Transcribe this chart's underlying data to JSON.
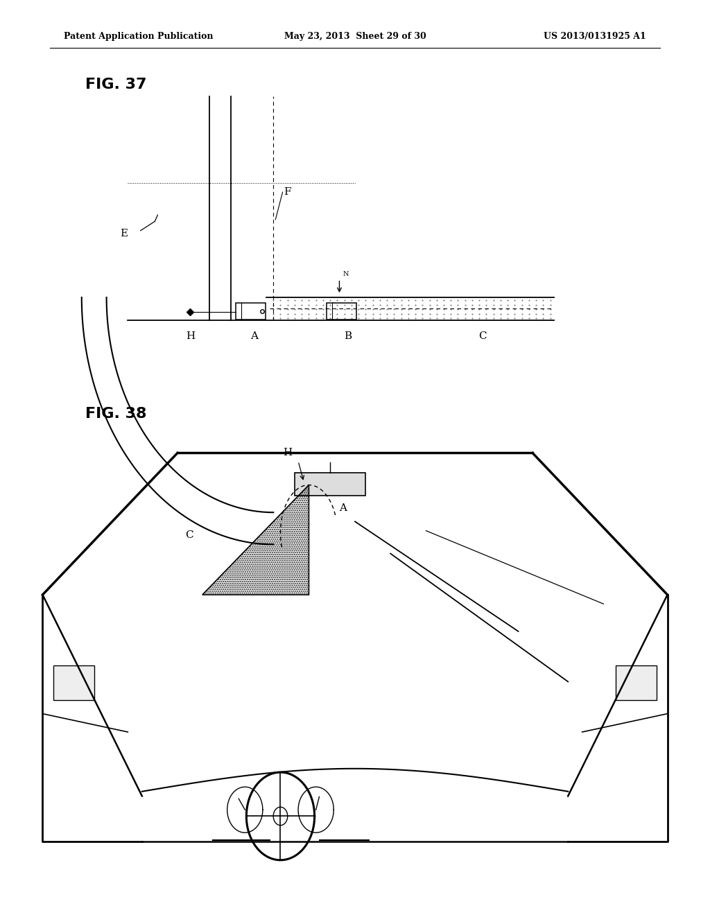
{
  "bg_color": "#ffffff",
  "header_left": "Patent Application Publication",
  "header_mid": "May 23, 2013  Sheet 29 of 30",
  "header_right": "US 2013/0131925 A1",
  "fig37_label": "FIG. 37",
  "fig38_label": "FIG. 38",
  "dial_r": 0.025
}
